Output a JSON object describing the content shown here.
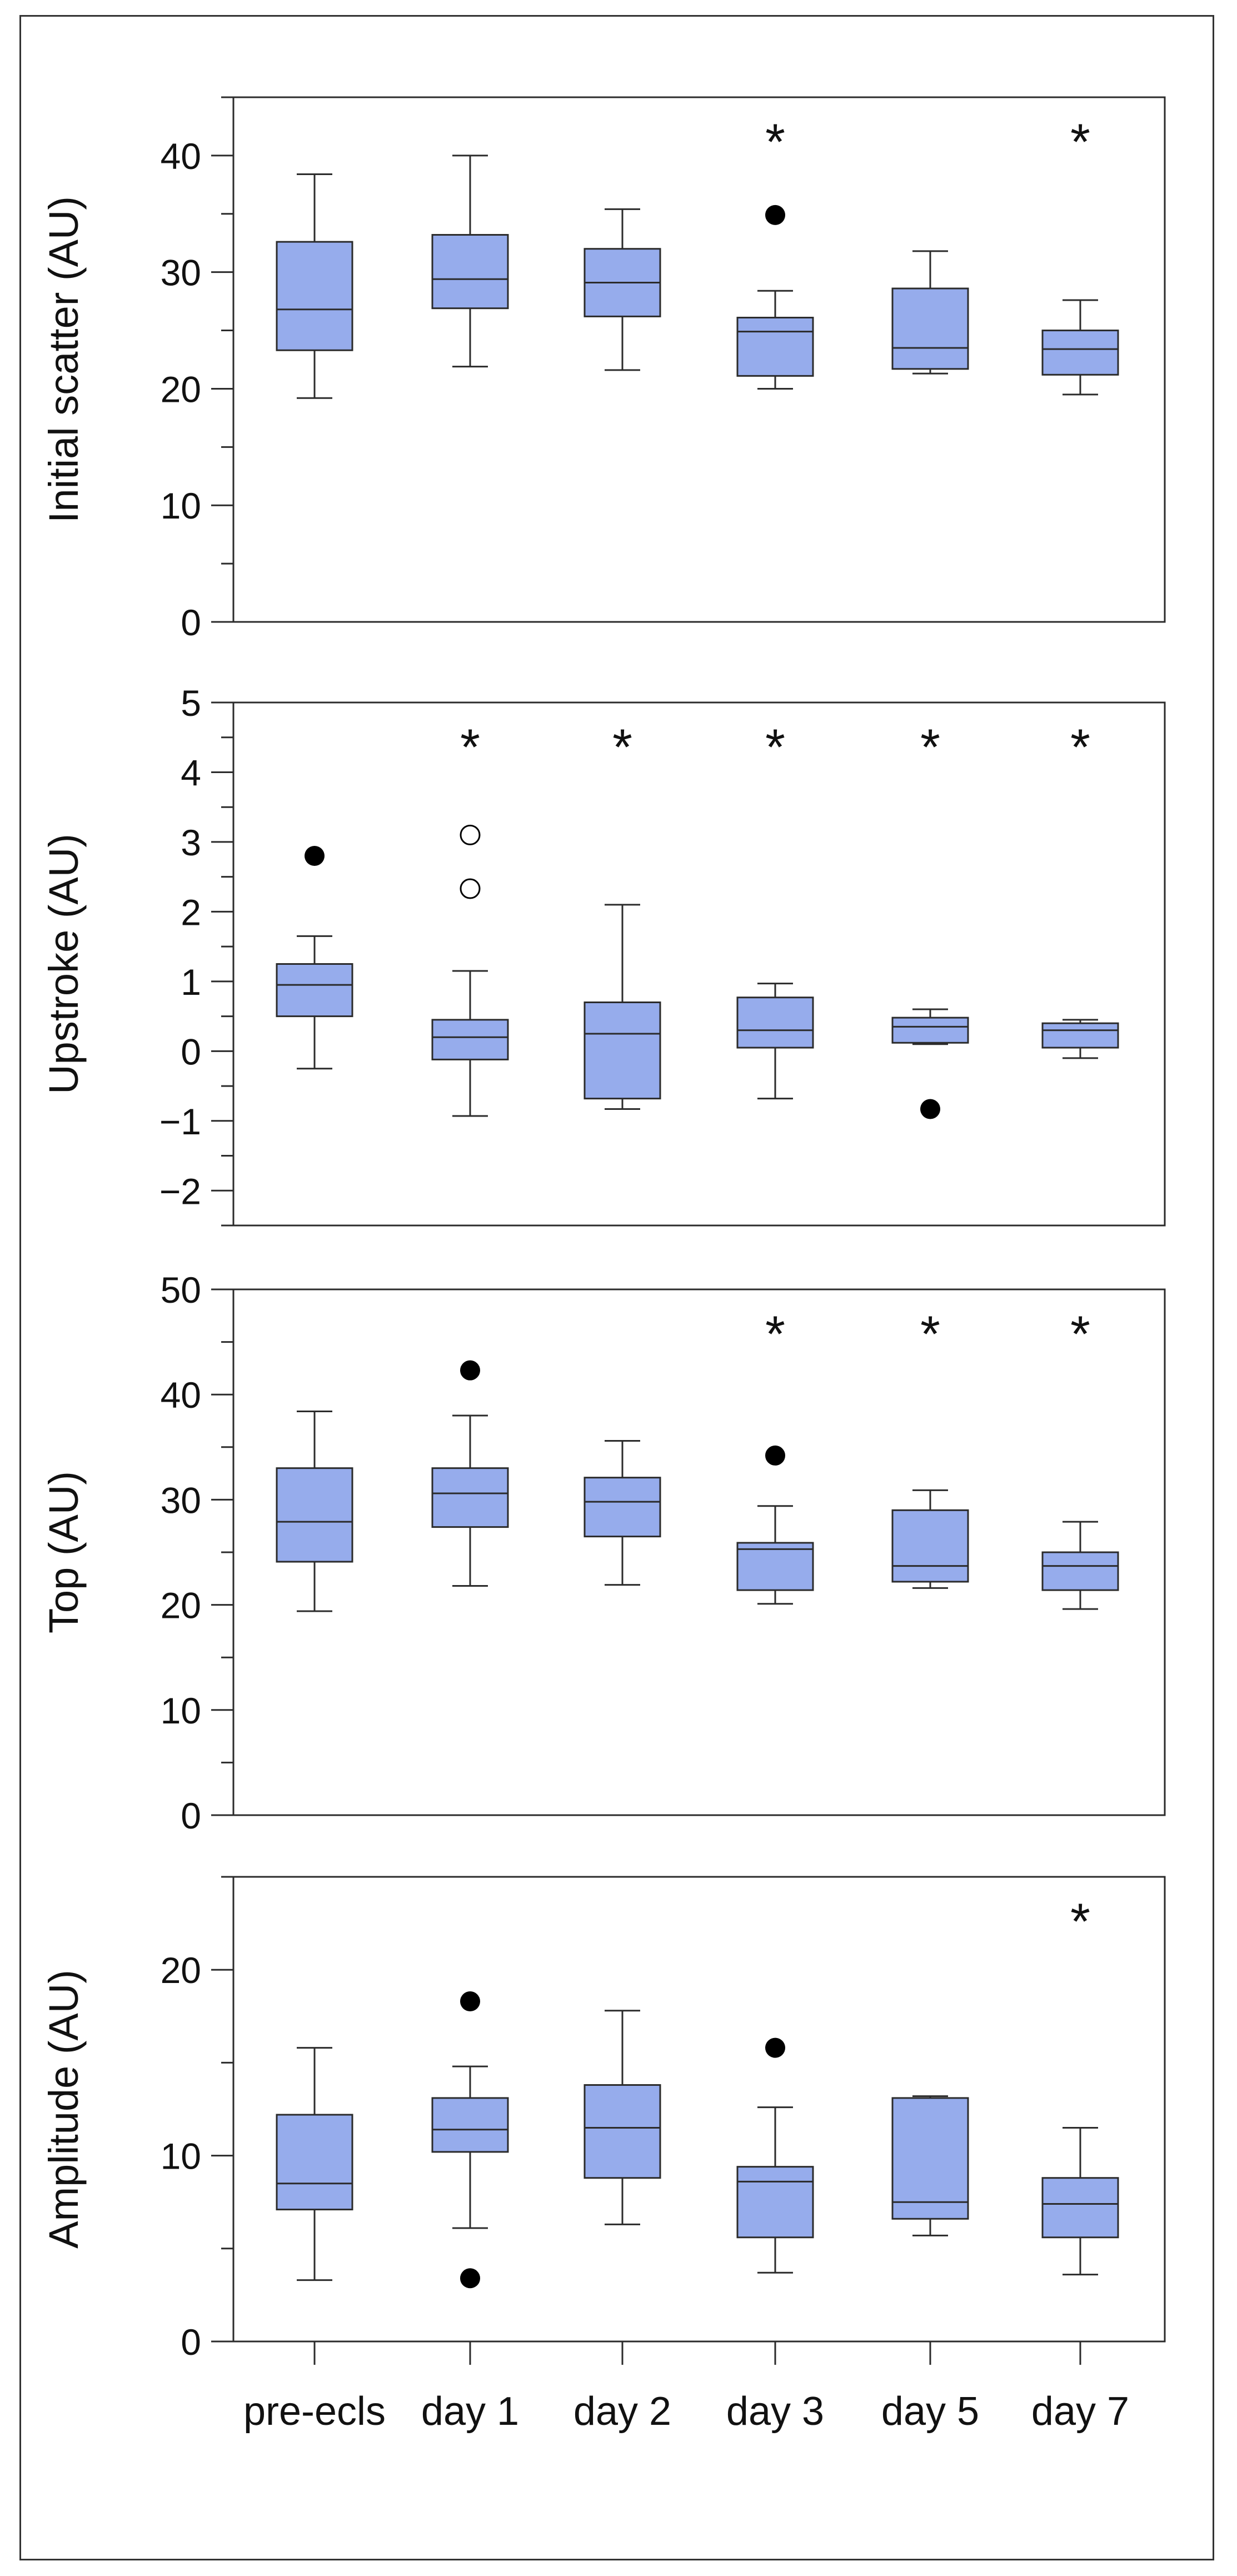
{
  "colors": {
    "box_fill": "#96acec",
    "stroke": "#2b2b2b",
    "background": "#ffffff"
  },
  "chart_data": [
    {
      "type": "box",
      "ylabel": "Initial scatter (AU)",
      "ylim": [
        0,
        45
      ],
      "yticks": [
        0,
        10,
        20,
        30,
        40
      ],
      "minor_step": 5,
      "categories": [
        "pre-ecls",
        "day 1",
        "day 2",
        "day 3",
        "day 5",
        "day 7"
      ],
      "boxes": [
        {
          "whisker_low": 19.2,
          "q1": 23.3,
          "median": 26.8,
          "q3": 32.6,
          "whisker_high": 38.4,
          "outliers": [],
          "open_outliers": [],
          "significant": false
        },
        {
          "whisker_low": 21.9,
          "q1": 26.9,
          "median": 29.4,
          "q3": 33.2,
          "whisker_high": 40.0,
          "outliers": [],
          "open_outliers": [],
          "significant": false
        },
        {
          "whisker_low": 21.6,
          "q1": 26.2,
          "median": 29.1,
          "q3": 32.0,
          "whisker_high": 35.4,
          "outliers": [],
          "open_outliers": [],
          "significant": false
        },
        {
          "whisker_low": 20.0,
          "q1": 21.1,
          "median": 24.9,
          "q3": 26.1,
          "whisker_high": 28.4,
          "outliers": [
            34.9
          ],
          "open_outliers": [],
          "significant": true
        },
        {
          "whisker_low": 21.3,
          "q1": 21.7,
          "median": 23.5,
          "q3": 28.6,
          "whisker_high": 31.8,
          "outliers": [],
          "open_outliers": [],
          "significant": false
        },
        {
          "whisker_low": 19.5,
          "q1": 21.2,
          "median": 23.4,
          "q3": 25.0,
          "whisker_high": 27.6,
          "outliers": [],
          "open_outliers": [],
          "significant": true
        }
      ],
      "significance_marker": "*"
    },
    {
      "type": "box",
      "ylabel": "Upstroke (AU)",
      "ylim": [
        -2.5,
        5
      ],
      "yticks": [
        -2,
        -1,
        0,
        1,
        2,
        3,
        4,
        5
      ],
      "minor_step": 0.5,
      "categories": [
        "pre-ecls",
        "day 1",
        "day 2",
        "day 3",
        "day 5",
        "day 7"
      ],
      "boxes": [
        {
          "whisker_low": -0.25,
          "q1": 0.5,
          "median": 0.95,
          "q3": 1.25,
          "whisker_high": 1.65,
          "outliers": [
            2.8
          ],
          "open_outliers": [],
          "significant": false
        },
        {
          "whisker_low": -0.93,
          "q1": -0.12,
          "median": 0.2,
          "q3": 0.45,
          "whisker_high": 1.15,
          "outliers": [],
          "open_outliers": [
            2.33,
            3.1
          ],
          "significant": true
        },
        {
          "whisker_low": -0.83,
          "q1": -0.68,
          "median": 0.25,
          "q3": 0.7,
          "whisker_high": 2.1,
          "outliers": [],
          "open_outliers": [],
          "significant": true
        },
        {
          "whisker_low": -0.68,
          "q1": 0.05,
          "median": 0.3,
          "q3": 0.77,
          "whisker_high": 0.97,
          "outliers": [],
          "open_outliers": [],
          "significant": true
        },
        {
          "whisker_low": 0.1,
          "q1": 0.12,
          "median": 0.35,
          "q3": 0.48,
          "whisker_high": 0.6,
          "outliers": [
            -0.83
          ],
          "open_outliers": [],
          "significant": true
        },
        {
          "whisker_low": -0.1,
          "q1": 0.05,
          "median": 0.3,
          "q3": 0.4,
          "whisker_high": 0.45,
          "outliers": [],
          "open_outliers": [],
          "significant": true
        }
      ],
      "significance_marker": "*"
    },
    {
      "type": "box",
      "ylabel": "Top (AU)",
      "ylim": [
        0,
        50
      ],
      "yticks": [
        0,
        10,
        20,
        30,
        40,
        50
      ],
      "minor_step": 5,
      "categories": [
        "pre-ecls",
        "day 1",
        "day 2",
        "day 3",
        "day 5",
        "day 7"
      ],
      "boxes": [
        {
          "whisker_low": 19.4,
          "q1": 24.1,
          "median": 27.9,
          "q3": 33.0,
          "whisker_high": 38.4,
          "outliers": [],
          "open_outliers": [],
          "significant": false
        },
        {
          "whisker_low": 21.8,
          "q1": 27.4,
          "median": 30.6,
          "q3": 33.0,
          "whisker_high": 38.0,
          "outliers": [
            42.3
          ],
          "open_outliers": [],
          "significant": false
        },
        {
          "whisker_low": 21.9,
          "q1": 26.5,
          "median": 29.8,
          "q3": 32.1,
          "whisker_high": 35.6,
          "outliers": [],
          "open_outliers": [],
          "significant": false
        },
        {
          "whisker_low": 20.1,
          "q1": 21.4,
          "median": 25.3,
          "q3": 25.9,
          "whisker_high": 29.4,
          "outliers": [
            34.2
          ],
          "open_outliers": [],
          "significant": true
        },
        {
          "whisker_low": 21.6,
          "q1": 22.2,
          "median": 23.7,
          "q3": 29.0,
          "whisker_high": 30.9,
          "outliers": [],
          "open_outliers": [],
          "significant": true
        },
        {
          "whisker_low": 19.6,
          "q1": 21.4,
          "median": 23.7,
          "q3": 25.0,
          "whisker_high": 27.9,
          "outliers": [],
          "open_outliers": [],
          "significant": true
        }
      ],
      "significance_marker": "*"
    },
    {
      "type": "box",
      "ylabel": "Amplitude (AU)",
      "ylim": [
        0,
        25
      ],
      "yticks": [
        0,
        10,
        20
      ],
      "minor_step": 5,
      "categories": [
        "pre-ecls",
        "day 1",
        "day 2",
        "day 3",
        "day 5",
        "day 7"
      ],
      "boxes": [
        {
          "whisker_low": 3.3,
          "q1": 7.1,
          "median": 8.5,
          "q3": 12.2,
          "whisker_high": 15.8,
          "outliers": [],
          "open_outliers": [],
          "significant": false
        },
        {
          "whisker_low": 6.1,
          "q1": 10.2,
          "median": 11.4,
          "q3": 13.1,
          "whisker_high": 14.8,
          "outliers": [
            3.4,
            18.3
          ],
          "open_outliers": [],
          "significant": false
        },
        {
          "whisker_low": 6.3,
          "q1": 8.8,
          "median": 11.5,
          "q3": 13.8,
          "whisker_high": 17.8,
          "outliers": [],
          "open_outliers": [],
          "significant": false
        },
        {
          "whisker_low": 3.7,
          "q1": 5.6,
          "median": 8.6,
          "q3": 9.4,
          "whisker_high": 12.6,
          "outliers": [
            15.8
          ],
          "open_outliers": [],
          "significant": false
        },
        {
          "whisker_low": 5.7,
          "q1": 6.6,
          "median": 7.5,
          "q3": 13.1,
          "whisker_high": 13.2,
          "outliers": [],
          "open_outliers": [],
          "significant": false
        },
        {
          "whisker_low": 3.6,
          "q1": 5.6,
          "median": 7.4,
          "q3": 8.8,
          "whisker_high": 11.5,
          "outliers": [],
          "open_outliers": [],
          "significant": true
        }
      ],
      "significance_marker": "*"
    }
  ]
}
